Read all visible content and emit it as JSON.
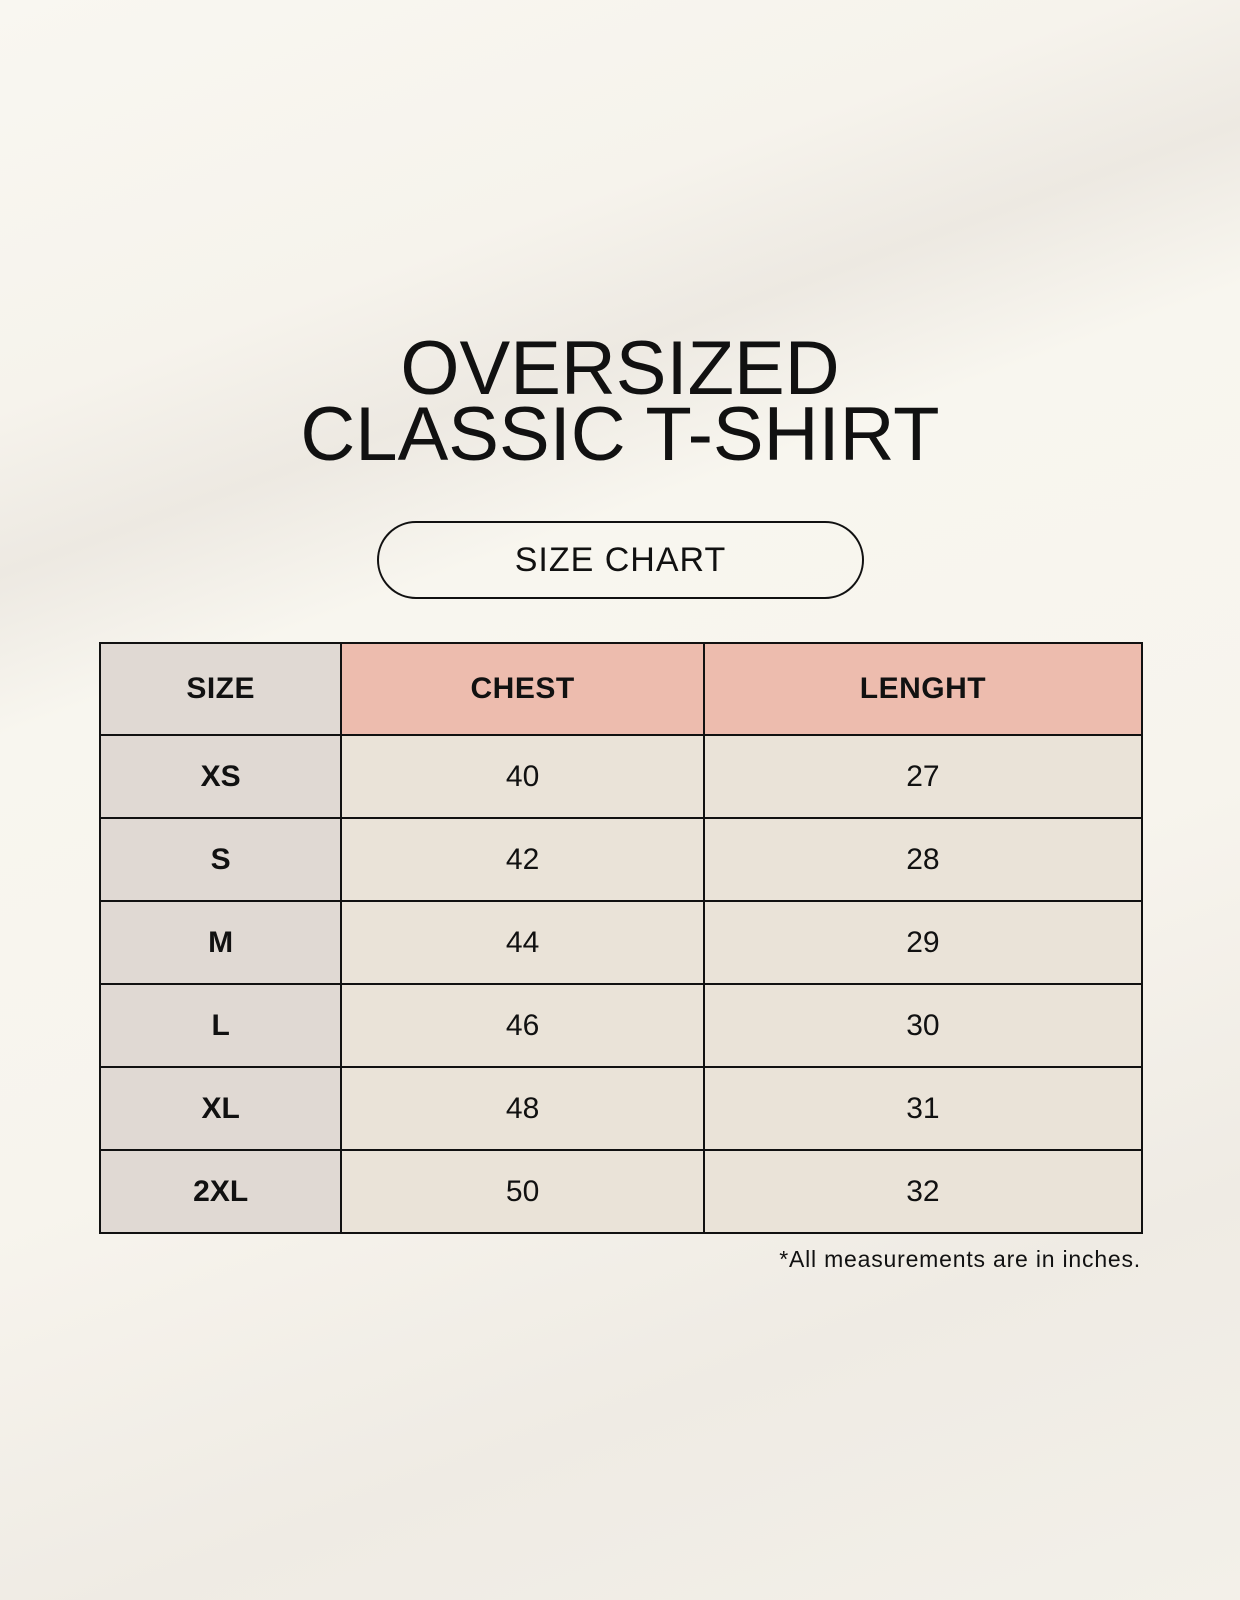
{
  "title": {
    "line1": "OVERSIZED",
    "line2": "CLASSIC T-SHIRT"
  },
  "subtitle": "SIZE CHART",
  "table": {
    "headers": [
      "SIZE",
      "CHEST",
      "LENGHT"
    ],
    "rows": [
      [
        "XS",
        "40",
        "27"
      ],
      [
        "S",
        "42",
        "28"
      ],
      [
        "M",
        "44",
        "29"
      ],
      [
        "L",
        "46",
        "30"
      ],
      [
        "XL",
        "48",
        "31"
      ],
      [
        "2XL",
        "50",
        "32"
      ]
    ]
  },
  "footnote": "*All measurements are in inches.",
  "colors": {
    "header_accent": "#edbcae",
    "size_column": "#e0d9d3",
    "cell": "#eae3d8"
  }
}
